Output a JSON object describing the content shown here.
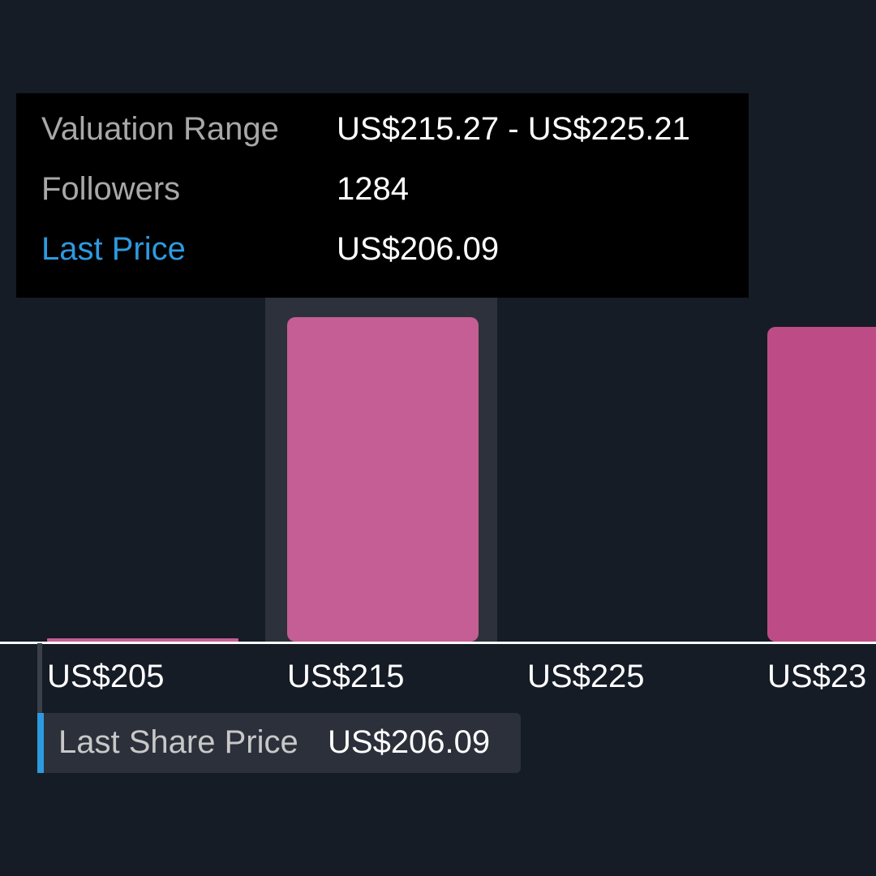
{
  "colors": {
    "background": "#161c26",
    "bar": "#c45e94",
    "bar_alt": "#bd4c86",
    "highlight_band": "#2c313b",
    "axis_line": "#ffffff",
    "accent": "#2d9ae0"
  },
  "chart_data": {
    "type": "bar",
    "categories": [
      "US$205",
      "US$215",
      "US$225",
      "US$23"
    ],
    "values": [
      1,
      100,
      0,
      97
    ],
    "highlighted_category": "US$215",
    "ylim": [
      0,
      100
    ],
    "xlabel": "",
    "ylabel": "",
    "grid": false,
    "tooltip": {
      "rows": [
        {
          "key": "Valuation Range",
          "value": "US$215.27 - US$225.21"
        },
        {
          "key": "Followers",
          "value": "1284"
        },
        {
          "key": "Last Price",
          "value": "US$206.09"
        }
      ]
    },
    "last_share_price": {
      "label": "Last Share Price",
      "value": "US$206.09",
      "x": 206.09
    }
  }
}
